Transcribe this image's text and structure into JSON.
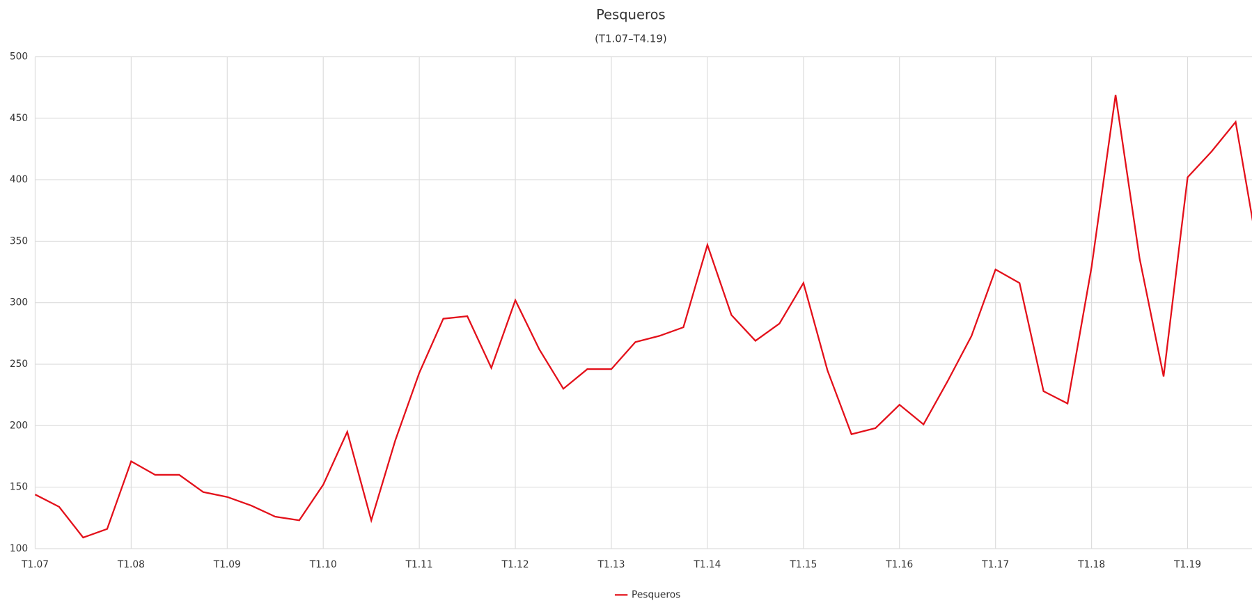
{
  "chart_data": {
    "type": "line",
    "title": "Pesqueros",
    "subtitle": "(T1.07–T4.19)",
    "categories": [
      "T1.07",
      null,
      null,
      null,
      "T1.08",
      null,
      null,
      null,
      "T1.09",
      null,
      null,
      null,
      "T1.10",
      null,
      null,
      null,
      "T1.11",
      null,
      null,
      null,
      "T1.12",
      null,
      null,
      null,
      "T1.13",
      null,
      null,
      null,
      "T1.14",
      null,
      null,
      null,
      "T1.15",
      null,
      null,
      null,
      "T1.16",
      null,
      null,
      null,
      "T1.17",
      null,
      null,
      null,
      "T1.18",
      null,
      null,
      null,
      "T1.19",
      null,
      null,
      null
    ],
    "series": [
      {
        "name": "Pesqueros",
        "color": "#e3101a",
        "values": [
          144,
          134,
          109,
          116,
          171,
          160,
          160,
          146,
          142,
          135,
          126,
          123,
          152,
          195,
          123,
          188,
          243,
          287,
          289,
          247,
          302,
          262,
          230,
          246,
          246,
          268,
          273,
          280,
          347,
          290,
          269,
          283,
          316,
          245,
          193,
          198,
          217,
          201,
          236,
          273,
          327,
          316,
          228,
          218,
          329,
          469,
          336,
          240,
          402,
          423,
          447,
          334
        ]
      }
    ],
    "ylim": [
      100,
      500
    ],
    "yticks": [
      100,
      150,
      200,
      250,
      300,
      350,
      400,
      450,
      500
    ],
    "grid": true,
    "legend": "bottom"
  }
}
